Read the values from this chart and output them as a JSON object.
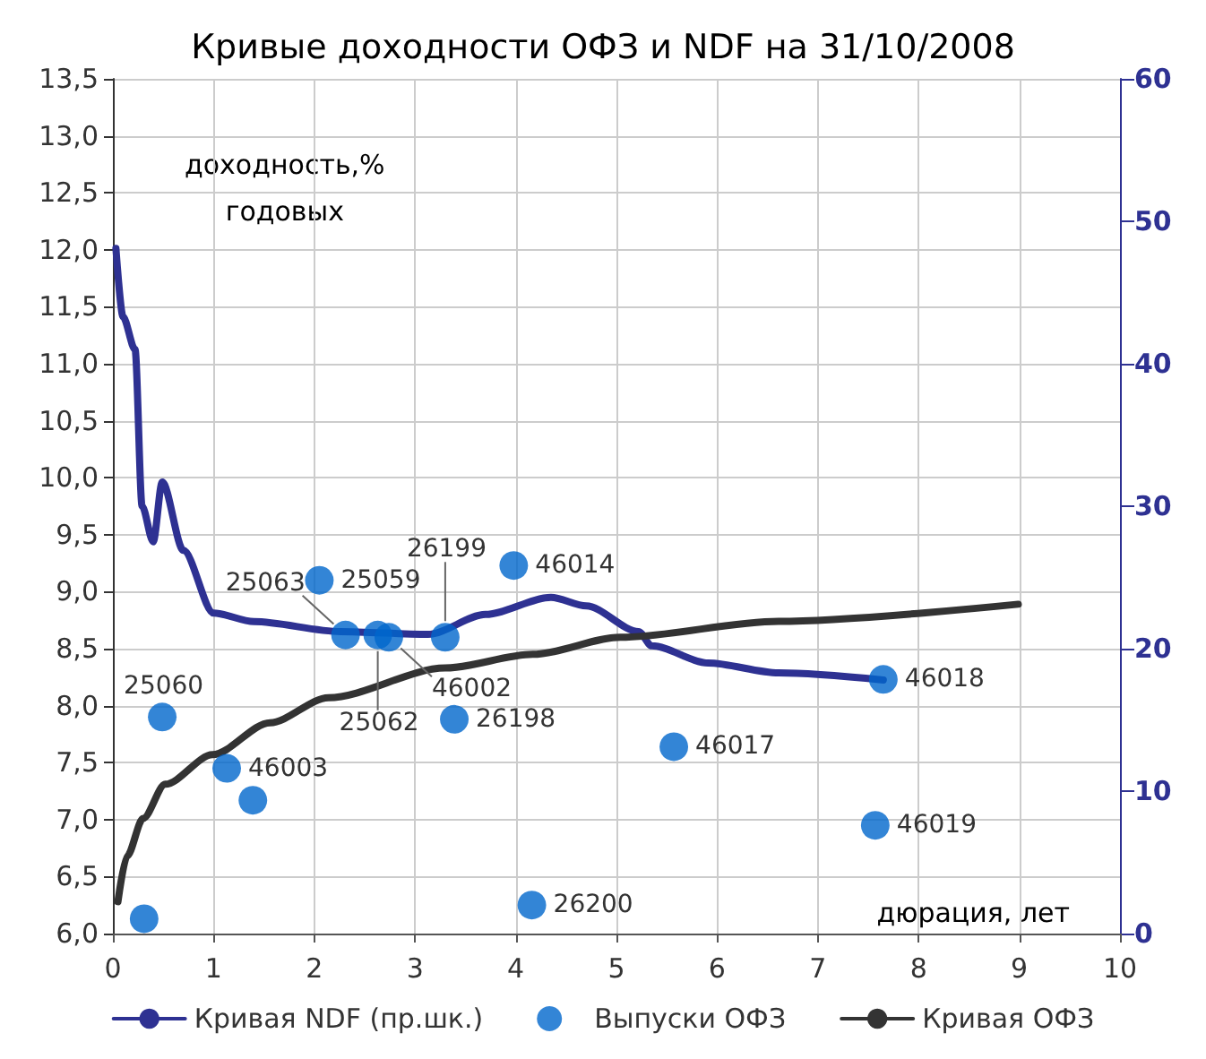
{
  "chart_data": {
    "type": "line",
    "title": "Кривые доходности ОФЗ и NDF на 31/10/2008",
    "xlabel": "дюрация, лет",
    "ylabel": "доходность,%\nгодовых",
    "xlim": [
      0,
      10
    ],
    "xticks": [
      0,
      1,
      2,
      3,
      4,
      5,
      6,
      7,
      8,
      9,
      10
    ],
    "ylim": [
      6.0,
      13.5
    ],
    "yticks": [
      {
        "value": 6.0,
        "label": "6,0"
      },
      {
        "value": 6.5,
        "label": "6,5"
      },
      {
        "value": 7.0,
        "label": "7,0"
      },
      {
        "value": 7.5,
        "label": "7,5"
      },
      {
        "value": 8.0,
        "label": "8,0"
      },
      {
        "value": 8.5,
        "label": "8,5"
      },
      {
        "value": 9.0,
        "label": "9,0"
      },
      {
        "value": 9.5,
        "label": "9,5"
      },
      {
        "value": 10.0,
        "label": "10,0"
      },
      {
        "value": 10.5,
        "label": "10,5"
      },
      {
        "value": 11.0,
        "label": "11,0"
      },
      {
        "value": 11.5,
        "label": "11,5"
      },
      {
        "value": 12.0,
        "label": "12,0"
      },
      {
        "value": 12.5,
        "label": "12,5"
      },
      {
        "value": 13.0,
        "label": "13,0"
      },
      {
        "value": 13.5,
        "label": "13,5"
      }
    ],
    "y2lim": [
      0,
      60
    ],
    "y2ticks": [
      0,
      10,
      20,
      30,
      40,
      50,
      60
    ],
    "grid": true,
    "legend": "bottom",
    "annotations": [
      {
        "text": "25060",
        "x": 0.49,
        "y": 7.9
      },
      {
        "text": "46003",
        "x": 1.13,
        "y": 7.45
      },
      {
        "text": "25059",
        "x": 2.05,
        "y": 9.1
      },
      {
        "text": "25063",
        "x": 2.31,
        "y": 8.62
      },
      {
        "text": "25062",
        "x": 2.63,
        "y": 8.62
      },
      {
        "text": "46002",
        "x": 2.74,
        "y": 8.6
      },
      {
        "text": "26199",
        "x": 3.3,
        "y": 8.6
      },
      {
        "text": "26198",
        "x": 3.39,
        "y": 7.88
      },
      {
        "text": "46014",
        "x": 3.98,
        "y": 9.23
      },
      {
        "text": "26200",
        "x": 4.16,
        "y": 6.25
      },
      {
        "text": "46017",
        "x": 5.57,
        "y": 7.64
      },
      {
        "text": "46019",
        "x": 7.57,
        "y": 6.95
      },
      {
        "text": "46018",
        "x": 7.65,
        "y": 8.23
      }
    ],
    "series": [
      {
        "name": "Кривая NDF (пр.шк.)",
        "axis": "y2",
        "color": "#2e3192",
        "marker": "none",
        "line_style": "solid",
        "x": [
          0.03,
          0.1,
          0.22,
          0.29,
          0.4,
          0.49,
          0.7,
          1.0,
          1.4,
          2.26,
          3.13,
          3.7,
          4.35,
          4.7,
          5.22,
          5.35,
          5.91,
          6.61,
          7.65
        ],
        "values": [
          48.1,
          43.3,
          41.0,
          30.0,
          27.5,
          31.7,
          26.9,
          22.5,
          21.9,
          21.2,
          21.0,
          22.4,
          23.6,
          23.0,
          21.2,
          20.2,
          19.0,
          18.3,
          17.8
        ]
      },
      {
        "name": "Выпуски ОФЗ",
        "type": "scatter",
        "color": "#0066cc",
        "marker": "circle",
        "x": [
          0.31,
          0.49,
          1.13,
          1.39,
          2.05,
          2.31,
          2.63,
          2.74,
          3.3,
          3.39,
          3.98,
          4.16,
          5.57,
          7.57,
          7.65
        ],
        "values": [
          6.13,
          7.9,
          7.45,
          7.17,
          9.1,
          8.62,
          8.62,
          8.6,
          8.6,
          7.88,
          9.23,
          6.25,
          7.64,
          6.95,
          8.23
        ]
      },
      {
        "name": "Кривая ОФЗ",
        "color": "#333333",
        "marker": "none",
        "line_style": "solid",
        "x": [
          0.05,
          0.14,
          0.3,
          0.52,
          0.99,
          1.56,
          2.14,
          3.3,
          4.17,
          5.04,
          6.61,
          8.99
        ],
        "values": [
          6.28,
          6.68,
          7.01,
          7.31,
          7.57,
          7.85,
          8.07,
          8.33,
          8.45,
          8.6,
          8.74,
          8.89
        ]
      }
    ]
  }
}
